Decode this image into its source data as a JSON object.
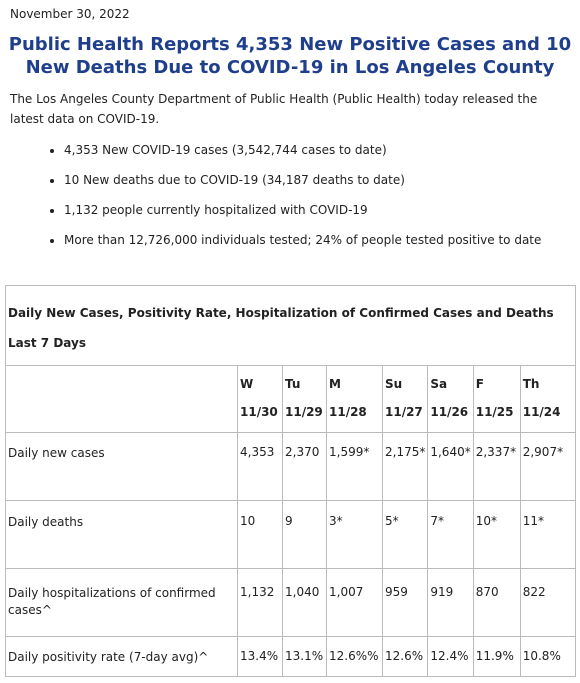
{
  "header": {
    "date": "November 30, 2022",
    "title": "Public Health Reports 4,353 New Positive Cases and 10 New Deaths Due to COVID-19 in Los Angeles County"
  },
  "intro": "The Los Angeles County Department of Public Health (Public Health) today released the latest data on  COVID-19.",
  "bullets": [
    "4,353 New COVID-19 cases (3,542,744 cases to date)",
    "10 New deaths due to COVID-19 (34,187 deaths to date)",
    "1,132 people currently hospitalized with COVID-19",
    "More than 12,726,000 individuals tested; 24% of people tested positive to date"
  ],
  "table": {
    "caption": "Daily New Cases, Positivity Rate, Hospitalization of Confirmed Cases and Deaths Last 7 Days",
    "columns": [
      {
        "day": "W",
        "date": "11/30"
      },
      {
        "day": "Tu",
        "date": "11/29"
      },
      {
        "day": "M",
        "date": "11/28"
      },
      {
        "day": "Su",
        "date": "11/27"
      },
      {
        "day": "Sa",
        "date": "11/26"
      },
      {
        "day": "F",
        "date": "11/25"
      },
      {
        "day": "Th",
        "date": "11/24"
      }
    ],
    "rows": [
      {
        "label": "Daily new cases",
        "cells": [
          "4,353",
          "2,370",
          "1,599*",
          "2,175*",
          "1,640*",
          "2,337*",
          "2,907*"
        ]
      },
      {
        "label": "Daily deaths",
        "cells": [
          "10",
          "9",
          "3*",
          "5*",
          "7*",
          "10*",
          "11*"
        ]
      },
      {
        "label": "Daily hospitalizations of confirmed cases^",
        "cells": [
          "1,132",
          "1,040",
          "1,007",
          "959",
          "919",
          "870",
          "822"
        ]
      },
      {
        "label": "Daily positivity rate (7-day avg)^",
        "cells": [
          "13.4%",
          "13.1%",
          "12.6%%",
          "12.6%",
          "12.4%",
          "11.9%",
          "10.8%"
        ]
      }
    ]
  }
}
